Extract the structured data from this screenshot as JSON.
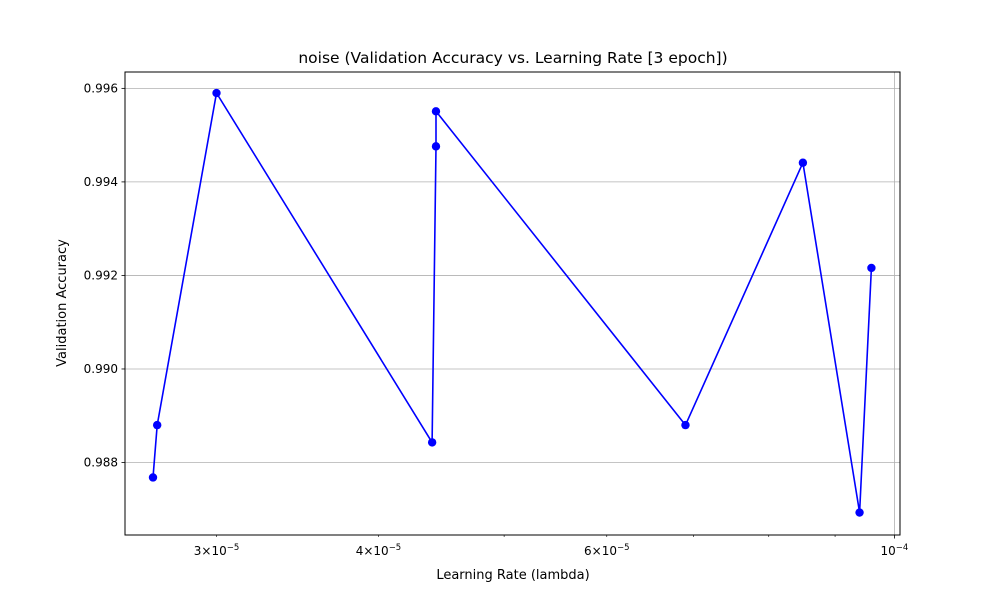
{
  "chart_data": {
    "type": "line",
    "title": "noise (Validation Accuracy vs. Learning Rate [3 epoch])",
    "xlabel": "Learning Rate (lambda)",
    "ylabel": "Validation Accuracy",
    "x_scale": "log",
    "xlim": [
      2.55e-05,
      0.000101
    ],
    "ylim": [
      0.98645,
      0.99635
    ],
    "grid": "y-major and x-major",
    "series": [
      {
        "color": "#0000ff",
        "marker": "circle",
        "points": [
          {
            "x": 2.68e-05,
            "y": 0.98768
          },
          {
            "x": 2.7e-05,
            "y": 0.9888
          },
          {
            "x": 3e-05,
            "y": 0.9959
          },
          {
            "x": 4.4e-05,
            "y": 0.98843
          },
          {
            "x": 4.43e-05,
            "y": 0.99476
          },
          {
            "x": 4.43e-05,
            "y": 0.99551
          },
          {
            "x": 6.9e-05,
            "y": 0.9888
          },
          {
            "x": 8.5e-05,
            "y": 0.99441
          },
          {
            "x": 9.4e-05,
            "y": 0.98693
          },
          {
            "x": 9.6e-05,
            "y": 0.99216
          }
        ]
      }
    ],
    "y_ticks": [
      {
        "value": 0.988,
        "label": "0.988"
      },
      {
        "value": 0.99,
        "label": "0.990"
      },
      {
        "value": 0.992,
        "label": "0.992"
      },
      {
        "value": 0.994,
        "label": "0.994"
      },
      {
        "value": 0.996,
        "label": "0.996"
      }
    ],
    "x_major_ticks": [
      {
        "value": 0.0001,
        "base": "10",
        "exp": "−4",
        "grid": true
      }
    ],
    "x_labeled_minor_ticks": [
      {
        "value": 3e-05,
        "coef": "3×10",
        "exp": "−5"
      },
      {
        "value": 4e-05,
        "coef": "4×10",
        "exp": "−5"
      },
      {
        "value": 6e-05,
        "coef": "6×10",
        "exp": "−5"
      }
    ],
    "x_minor_ticks": [
      5e-05,
      7e-05,
      8e-05,
      9e-05
    ]
  }
}
